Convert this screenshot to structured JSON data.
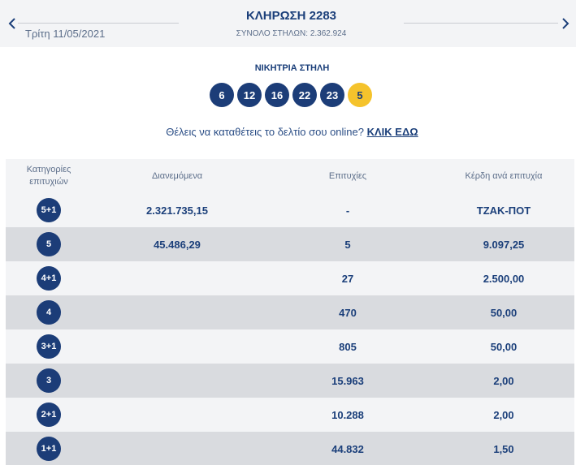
{
  "header": {
    "date": "Τρίτη 11/05/2021",
    "title": "ΚΛΗΡΩΣΗ 2283",
    "total_columns": "ΣΥΝΟΛΟ ΣΤΗΛΩΝ: 2.362.924"
  },
  "winning": {
    "title": "ΝΙΚΗΤΡΙΑ ΣΤΗΛΗ",
    "numbers": [
      "6",
      "12",
      "16",
      "22",
      "23"
    ],
    "joker": "5"
  },
  "cta": {
    "text": "Θέλεις να καταθέτεις το δελτίο σου online? ",
    "link": "ΚΛΙΚ ΕΔΩ"
  },
  "table": {
    "headers": {
      "category": "Κατηγορίες επιτυχιών",
      "distributed": "Διανεμόμενα",
      "winners": "Επιτυχίες",
      "prize": "Κέρδη ανά επιτυχία"
    },
    "rows": [
      {
        "category": "5+1",
        "distributed": "2.321.735,15",
        "winners": "-",
        "prize": "ΤΖΑΚ-ΠΟΤ"
      },
      {
        "category": "5",
        "distributed": "45.486,29",
        "winners": "5",
        "prize": "9.097,25"
      },
      {
        "category": "4+1",
        "distributed": "",
        "winners": "27",
        "prize": "2.500,00"
      },
      {
        "category": "4",
        "distributed": "",
        "winners": "470",
        "prize": "50,00"
      },
      {
        "category": "3+1",
        "distributed": "",
        "winners": "805",
        "prize": "50,00"
      },
      {
        "category": "3",
        "distributed": "",
        "winners": "15.963",
        "prize": "2,00"
      },
      {
        "category": "2+1",
        "distributed": "",
        "winners": "10.288",
        "prize": "2,00"
      },
      {
        "category": "1+1",
        "distributed": "",
        "winners": "44.832",
        "prize": "1,50"
      }
    ]
  },
  "colors": {
    "primary": "#1c3d78",
    "joker": "#f5c32c",
    "row_light": "#f3f4f6",
    "row_dark": "#d9dbdf"
  }
}
